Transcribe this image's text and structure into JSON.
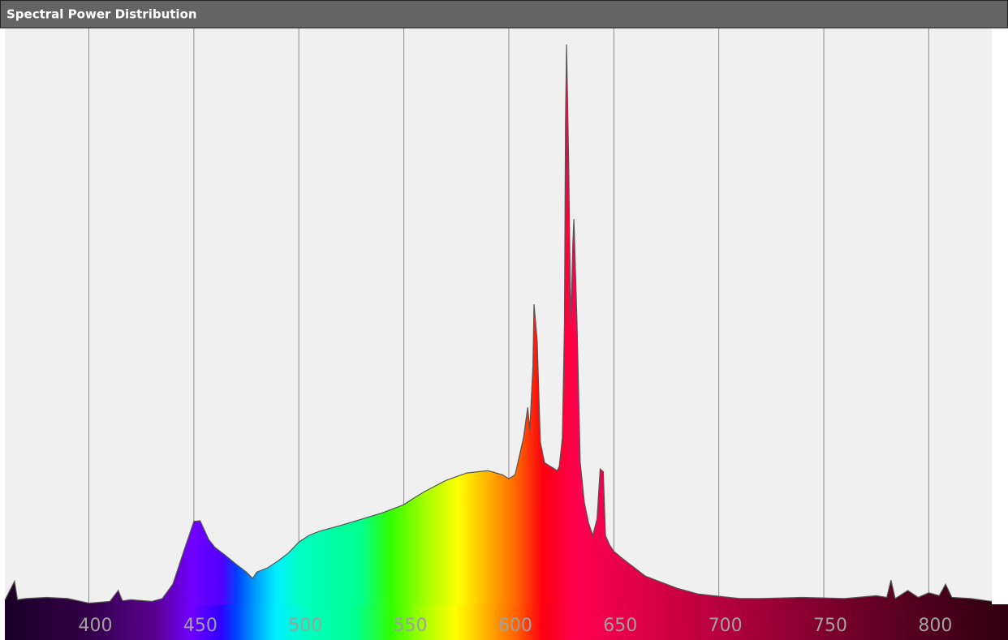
{
  "chart_data": {
    "type": "area",
    "title": "Spectral Power Distribution",
    "x": [
      360,
      364.6,
      366,
      370,
      380,
      390,
      400,
      410,
      414,
      416,
      420,
      430,
      435,
      440,
      445,
      450,
      453,
      457,
      460,
      465,
      470,
      475,
      478,
      480,
      485,
      490,
      495,
      500,
      505,
      510,
      520,
      530,
      540,
      550,
      555,
      560,
      570,
      580,
      590,
      597,
      600,
      603,
      607,
      609,
      610,
      611.5,
      612,
      613.5,
      615,
      617,
      620,
      623,
      624,
      625.5,
      626.5,
      627,
      627.5,
      628.5,
      629.5,
      630.5,
      631,
      632.5,
      634,
      636,
      638,
      640,
      642,
      643.5,
      645,
      646,
      648,
      650,
      655,
      660,
      665,
      670,
      680,
      690,
      700,
      710,
      720,
      740,
      760,
      775,
      780,
      782,
      784,
      790,
      795,
      800,
      805,
      808,
      811,
      820,
      830
    ],
    "values": [
      0.007,
      0.04,
      0.008,
      0.01,
      0.012,
      0.01,
      0.002,
      0.005,
      0.024,
      0.006,
      0.008,
      0.005,
      0.01,
      0.035,
      0.09,
      0.144,
      0.145,
      0.113,
      0.099,
      0.085,
      0.07,
      0.056,
      0.045,
      0.056,
      0.063,
      0.075,
      0.089,
      0.108,
      0.12,
      0.127,
      0.137,
      0.148,
      0.159,
      0.173,
      0.185,
      0.196,
      0.215,
      0.228,
      0.232,
      0.225,
      0.218,
      0.225,
      0.289,
      0.342,
      0.303,
      0.415,
      0.521,
      0.458,
      0.282,
      0.246,
      0.239,
      0.232,
      0.239,
      0.289,
      0.486,
      0.838,
      0.972,
      0.768,
      0.486,
      0.627,
      0.669,
      0.486,
      0.246,
      0.176,
      0.141,
      0.12,
      0.148,
      0.235,
      0.23,
      0.12,
      0.103,
      0.092,
      0.077,
      0.063,
      0.049,
      0.042,
      0.028,
      0.018,
      0.014,
      0.01,
      0.01,
      0.012,
      0.01,
      0.015,
      0.012,
      0.042,
      0.01,
      0.024,
      0.012,
      0.02,
      0.015,
      0.035,
      0.012,
      0.01,
      0.005
    ],
    "color": "#555555",
    "xlim": [
      360,
      830
    ],
    "ylim": [
      0,
      1
    ],
    "xticks": [
      400,
      450,
      500,
      550,
      600,
      650,
      700,
      750,
      800
    ],
    "grid": true
  }
}
